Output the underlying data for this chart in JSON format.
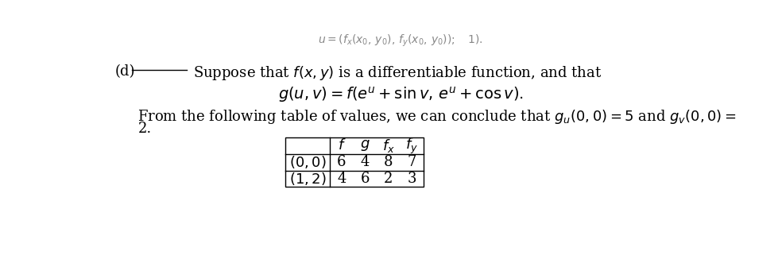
{
  "background_color": "#ffffff",
  "label_d": "(d)",
  "line1": "Suppose that $f(x, y)$ is a differentiable function, and that",
  "line2": "$g(u, v) = f(e^u + \\sin v,\\, e^u + \\cos v).$",
  "line3": "From the following table of values, we can conclude that $g_u(0, 0) = 5$ and $g_v(0, 0) =$",
  "line4": "2.",
  "table_header": [
    "",
    "$f$",
    "$g$",
    "$f_x$",
    "$f_y$"
  ],
  "table_row1": [
    "$(0, 0)$",
    "6",
    "4",
    "8",
    "7"
  ],
  "table_row2": [
    "$(1, 2)$",
    "4",
    "6",
    "2",
    "3"
  ],
  "top_text": "$u = (f_x(x_0,\\, y_0),\\, f_y(x_0,\\, y_0));\\quad 1).$",
  "font_size_main": 13,
  "font_size_table": 13,
  "text_color": "#000000"
}
